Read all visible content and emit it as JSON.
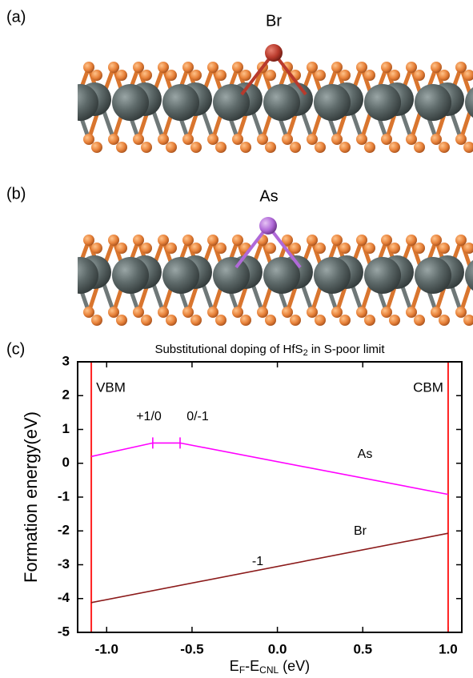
{
  "panels": {
    "a": "(a)",
    "b": "(b)",
    "c": "(c)",
    "a_atom": "Br",
    "b_atom": "As"
  },
  "chart_data": {
    "type": "line",
    "title": [
      "Substitutional doping of HfS",
      "2",
      " in S-poor limit"
    ],
    "xlabel": [
      "E",
      "F",
      "-E",
      "CNL",
      " (eV)"
    ],
    "ylabel": "Formation energy(eV)",
    "xlim": [
      -1.17,
      1.08
    ],
    "ylim": [
      -5,
      3
    ],
    "xticks": [
      {
        "value": -1,
        "label": "-1.0"
      },
      -0.5,
      {
        "value": 0,
        "label": "0.0"
      },
      0.5,
      {
        "value": 1,
        "label": "1.0"
      }
    ],
    "yticks": [
      -5,
      -4,
      -3,
      -2,
      -1,
      0,
      1,
      2,
      3
    ],
    "series": [
      {
        "name": "As",
        "color": "#ff00ff",
        "x": [
          -1.09,
          -0.73,
          -0.57,
          1.0
        ],
        "values": [
          0.2,
          0.6,
          0.6,
          -0.92
        ]
      },
      {
        "name": "Br",
        "color": "#8b1a1a",
        "x": [
          -1.09,
          1.0
        ],
        "values": [
          -4.12,
          -2.07
        ]
      }
    ],
    "transitions": [
      {
        "label": "+1/0",
        "x": -0.73,
        "y": 0.6
      },
      {
        "label": "0/-1",
        "x": -0.57,
        "y": 0.6
      }
    ],
    "charge_label": "-1",
    "vlines": [
      {
        "label": "VBM",
        "x": -1.09
      },
      {
        "label": "CBM",
        "x": 1.0
      }
    ],
    "vline_color": "#ff2020"
  }
}
